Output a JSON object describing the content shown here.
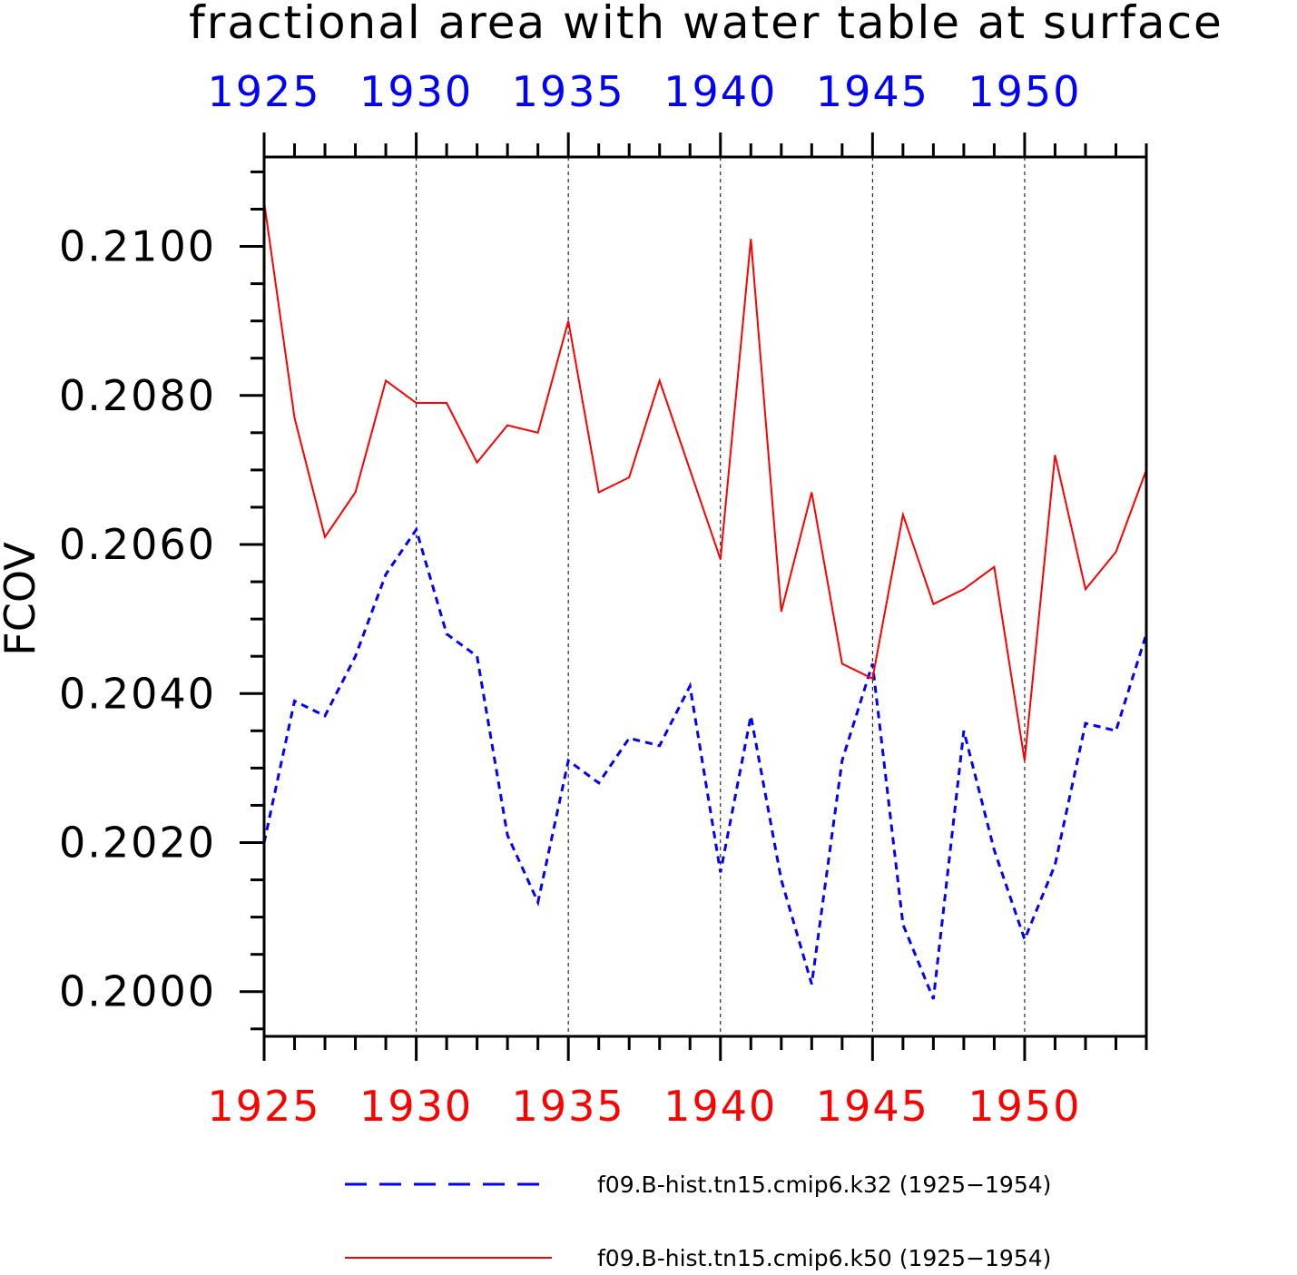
{
  "chart_data": {
    "type": "line",
    "title": "fractional area with water table at surface",
    "ylabel": "FCOV",
    "xlim": [
      1925,
      1954
    ],
    "ylim": [
      0.1994,
      0.2112
    ],
    "x_major_ticks": [
      1925,
      1930,
      1935,
      1940,
      1945,
      1950
    ],
    "x_minor_step": 1,
    "y_major_ticks": [
      0.2,
      0.202,
      0.204,
      0.206,
      0.208,
      0.21
    ],
    "y_tick_labels": [
      "0.2000",
      "0.2020",
      "0.2040",
      "0.2060",
      "0.2080",
      "0.2100"
    ],
    "y_minor_step": 0.0005,
    "top_axis_color": "#0000ff",
    "bottom_axis_color": "#ff0000",
    "grid": "vertical dashed at major x ticks",
    "legend_position": "bottom",
    "x": [
      1925,
      1926,
      1927,
      1928,
      1929,
      1930,
      1931,
      1932,
      1933,
      1934,
      1935,
      1936,
      1937,
      1938,
      1939,
      1940,
      1941,
      1942,
      1943,
      1944,
      1945,
      1946,
      1947,
      1948,
      1949,
      1950,
      1951,
      1952,
      1953,
      1954
    ],
    "series": [
      {
        "name": "f09.B-hist.tn15.cmip6.k32 (1925−1954)",
        "color": "#0000ff",
        "style": "dashed",
        "values": [
          0.202,
          0.2039,
          0.2037,
          0.2045,
          0.2056,
          0.2062,
          0.2048,
          0.2045,
          0.2021,
          0.2012,
          0.2031,
          0.2028,
          0.2034,
          0.2033,
          0.2041,
          0.2016,
          0.2037,
          0.2015,
          0.2001,
          0.2031,
          0.2044,
          0.2009,
          0.1999,
          0.2035,
          0.2019,
          0.2007,
          0.2017,
          0.2036,
          0.2035,
          0.2048
        ]
      },
      {
        "name": "f09.B-hist.tn15.cmip6.k50 (1925−1954)",
        "color": "#ff0000",
        "style": "solid",
        "values": [
          0.2106,
          0.2077,
          0.2061,
          0.2067,
          0.2082,
          0.2079,
          0.2079,
          0.2071,
          0.2076,
          0.2075,
          0.209,
          0.2067,
          0.2069,
          0.2082,
          0.207,
          0.2058,
          0.2101,
          0.2051,
          0.2067,
          0.2044,
          0.2042,
          0.2064,
          0.2052,
          0.2054,
          0.2057,
          0.2031,
          0.2072,
          0.2054,
          0.2059,
          0.207
        ]
      }
    ]
  }
}
